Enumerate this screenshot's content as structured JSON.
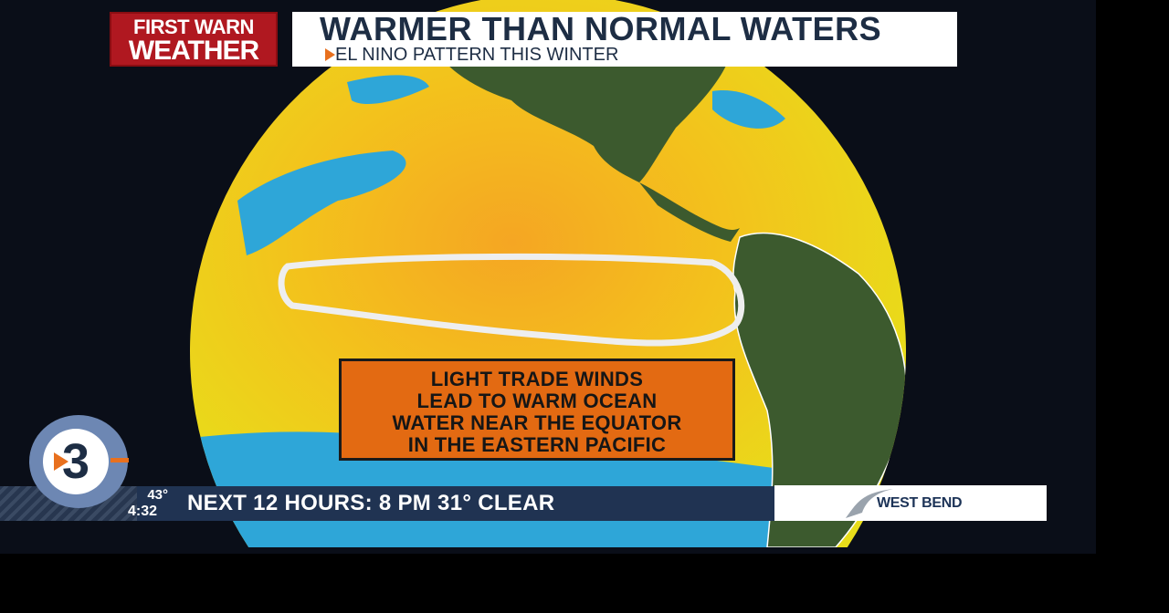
{
  "brand": {
    "line1": "FIRST WARN",
    "line2": "WEATHER"
  },
  "header": {
    "title": "WARMER THAN NORMAL WATERS",
    "subtitle": "EL NINO PATTERN THIS WINTER"
  },
  "callout": {
    "lines": [
      "LIGHT TRADE WINDS",
      "LEAD TO WARM OCEAN",
      "WATER NEAR THE EQUATOR",
      "IN THE EASTERN PACIFIC"
    ]
  },
  "station": {
    "logo_number": "3"
  },
  "ticker": {
    "temperature": "43°",
    "time": "4:32",
    "text": "NEXT 12 HOURS: 8 PM 31° CLEAR"
  },
  "sponsor": {
    "name": "WEST BEND"
  },
  "colors": {
    "warm_anomaly": "#f2c81a",
    "cool_anomaly": "#2ea6d8",
    "land": "#3c5a2e",
    "callout": "#e36a12",
    "brand_red": "#b01820",
    "ticker": "#203352"
  }
}
